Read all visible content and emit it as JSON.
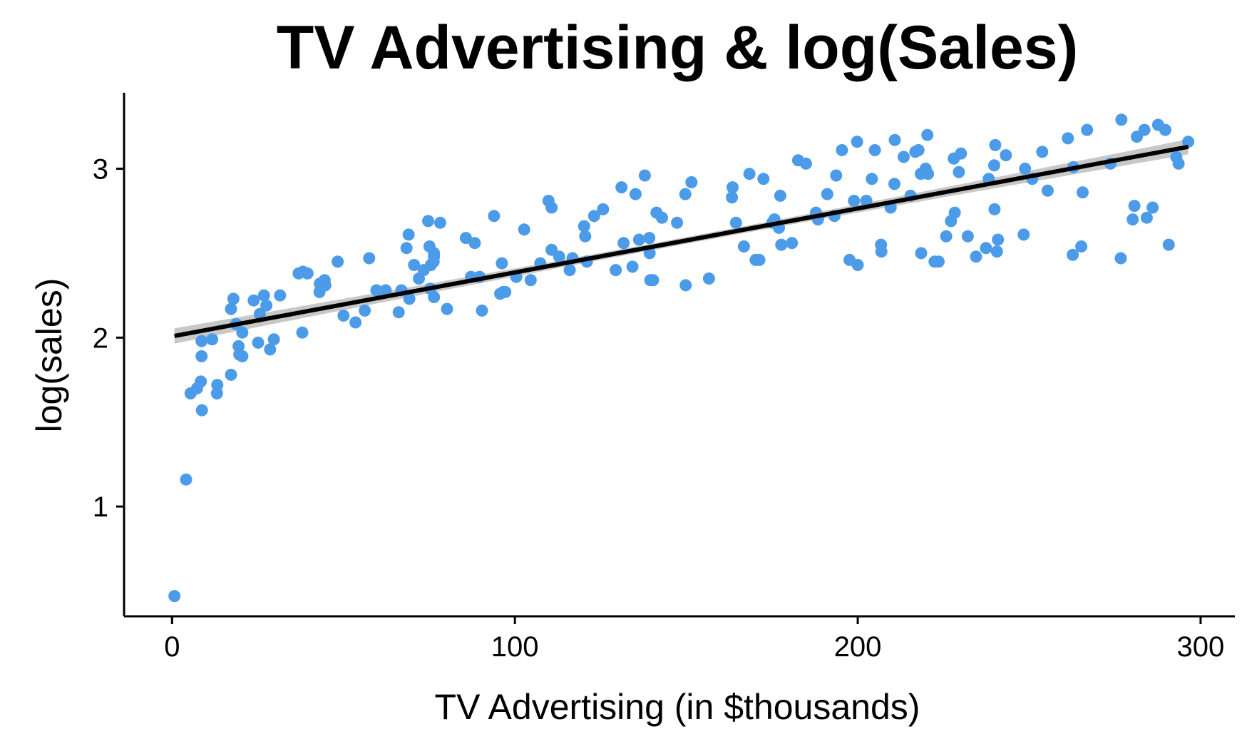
{
  "chart_data": {
    "type": "scatter",
    "title": "TV Advertising & log(Sales)",
    "xlabel": "TV Advertising (in $thousands)",
    "ylabel": "log(sales)",
    "xlim": [
      -14,
      310
    ],
    "ylim": [
      0.35,
      3.45
    ],
    "x_ticks": [
      0,
      100,
      200,
      300
    ],
    "y_ticks": [
      1,
      2,
      3
    ],
    "grid": false,
    "legend": "none",
    "point_color": "#4C9BE8",
    "line_color": "#000000",
    "band_color": "#BEBEBE",
    "fit": {
      "type": "linear",
      "x_range": [
        0.7,
        296.4
      ],
      "y_range": [
        2.01,
        3.13
      ],
      "confidence_band": true,
      "band_half_width_ends": 0.045,
      "band_half_width_center": 0.02
    },
    "points": [
      [
        0.7,
        0.47
      ],
      [
        4.1,
        1.16
      ],
      [
        5.4,
        1.67
      ],
      [
        7.3,
        1.7
      ],
      [
        8.4,
        1.74
      ],
      [
        8.6,
        1.89
      ],
      [
        8.7,
        1.57
      ],
      [
        8.6,
        1.98
      ],
      [
        11.7,
        1.99
      ],
      [
        13.1,
        1.67
      ],
      [
        13.2,
        1.72
      ],
      [
        17.2,
        1.78
      ],
      [
        17.2,
        2.17
      ],
      [
        17.9,
        2.23
      ],
      [
        18.7,
        2.08
      ],
      [
        19.4,
        1.95
      ],
      [
        19.6,
        1.9
      ],
      [
        20.5,
        1.89
      ],
      [
        20.5,
        2.03
      ],
      [
        23.8,
        2.22
      ],
      [
        25.1,
        1.97
      ],
      [
        25.6,
        2.14
      ],
      [
        26.8,
        2.25
      ],
      [
        27.5,
        2.19
      ],
      [
        28.6,
        1.93
      ],
      [
        29.7,
        1.99
      ],
      [
        31.5,
        2.25
      ],
      [
        36.9,
        2.38
      ],
      [
        38.0,
        2.03
      ],
      [
        38.2,
        2.39
      ],
      [
        39.5,
        2.38
      ],
      [
        43.0,
        2.27
      ],
      [
        43.1,
        2.32
      ],
      [
        44.5,
        2.34
      ],
      [
        44.7,
        2.31
      ],
      [
        48.3,
        2.45
      ],
      [
        50.0,
        2.13
      ],
      [
        53.5,
        2.09
      ],
      [
        56.2,
        2.16
      ],
      [
        57.5,
        2.47
      ],
      [
        59.6,
        2.28
      ],
      [
        62.3,
        2.28
      ],
      [
        66.1,
        2.15
      ],
      [
        66.9,
        2.28
      ],
      [
        68.4,
        2.53
      ],
      [
        69.0,
        2.61
      ],
      [
        69.2,
        2.23
      ],
      [
        70.6,
        2.43
      ],
      [
        72.0,
        2.35
      ],
      [
        73.4,
        2.4
      ],
      [
        74.7,
        2.69
      ],
      [
        75.1,
        2.54
      ],
      [
        75.3,
        2.29
      ],
      [
        75.5,
        2.43
      ],
      [
        76.3,
        2.45
      ],
      [
        76.4,
        2.24
      ],
      [
        76.4,
        2.5
      ],
      [
        76.4,
        2.48
      ],
      [
        78.2,
        2.68
      ],
      [
        80.2,
        2.17
      ],
      [
        85.7,
        2.59
      ],
      [
        87.2,
        2.36
      ],
      [
        88.3,
        2.56
      ],
      [
        89.7,
        2.36
      ],
      [
        90.4,
        2.16
      ],
      [
        93.9,
        2.72
      ],
      [
        95.7,
        2.26
      ],
      [
        96.2,
        2.44
      ],
      [
        96.6,
        2.27
      ],
      [
        97.2,
        2.27
      ],
      [
        100.4,
        2.36
      ],
      [
        102.7,
        2.64
      ],
      [
        104.6,
        2.34
      ],
      [
        107.4,
        2.44
      ],
      [
        109.8,
        2.81
      ],
      [
        110.7,
        2.52
      ],
      [
        110.7,
        2.77
      ],
      [
        112.9,
        2.48
      ],
      [
        116.0,
        2.4
      ],
      [
        116.8,
        2.47
      ],
      [
        120.2,
        2.66
      ],
      [
        120.5,
        2.6
      ],
      [
        121.0,
        2.45
      ],
      [
        123.1,
        2.72
      ],
      [
        125.7,
        2.76
      ],
      [
        129.4,
        2.4
      ],
      [
        131.1,
        2.89
      ],
      [
        131.7,
        2.56
      ],
      [
        134.3,
        2.42
      ],
      [
        135.2,
        2.85
      ],
      [
        136.2,
        2.58
      ],
      [
        137.9,
        2.96
      ],
      [
        139.2,
        2.59
      ],
      [
        139.3,
        2.5
      ],
      [
        139.5,
        2.34
      ],
      [
        140.3,
        2.34
      ],
      [
        141.3,
        2.74
      ],
      [
        142.9,
        2.71
      ],
      [
        147.3,
        2.68
      ],
      [
        149.7,
        2.85
      ],
      [
        149.8,
        2.31
      ],
      [
        151.5,
        2.92
      ],
      [
        156.6,
        2.35
      ],
      [
        163.3,
        2.83
      ],
      [
        163.5,
        2.89
      ],
      [
        164.5,
        2.68
      ],
      [
        166.8,
        2.54
      ],
      [
        168.4,
        2.97
      ],
      [
        170.2,
        2.46
      ],
      [
        171.3,
        2.46
      ],
      [
        172.5,
        2.94
      ],
      [
        175.1,
        2.68
      ],
      [
        175.7,
        2.7
      ],
      [
        177.0,
        2.65
      ],
      [
        177.4,
        2.84
      ],
      [
        177.7,
        2.55
      ],
      [
        180.8,
        2.56
      ],
      [
        182.6,
        3.05
      ],
      [
        184.9,
        3.03
      ],
      [
        187.8,
        2.74
      ],
      [
        188.4,
        2.71
      ],
      [
        188.4,
        2.7
      ],
      [
        191.1,
        2.85
      ],
      [
        193.2,
        2.72
      ],
      [
        193.7,
        2.96
      ],
      [
        195.4,
        3.11
      ],
      [
        197.6,
        2.46
      ],
      [
        198.9,
        2.81
      ],
      [
        199.8,
        3.16
      ],
      [
        200.0,
        2.43
      ],
      [
        202.5,
        2.81
      ],
      [
        204.1,
        2.94
      ],
      [
        205.0,
        3.11
      ],
      [
        206.8,
        2.55
      ],
      [
        206.9,
        2.51
      ],
      [
        209.6,
        2.77
      ],
      [
        210.7,
        2.91
      ],
      [
        210.8,
        3.17
      ],
      [
        213.4,
        3.07
      ],
      [
        215.4,
        2.84
      ],
      [
        216.8,
        3.1
      ],
      [
        217.7,
        3.11
      ],
      [
        218.4,
        2.97
      ],
      [
        218.5,
        2.5
      ],
      [
        219.8,
        3.0
      ],
      [
        220.3,
        3.2
      ],
      [
        220.5,
        2.97
      ],
      [
        222.4,
        2.45
      ],
      [
        223.6,
        2.45
      ],
      [
        225.8,
        2.6
      ],
      [
        227.2,
        2.69
      ],
      [
        228.0,
        3.06
      ],
      [
        228.3,
        2.74
      ],
      [
        229.5,
        2.98
      ],
      [
        230.1,
        3.09
      ],
      [
        232.1,
        2.6
      ],
      [
        234.5,
        2.48
      ],
      [
        237.4,
        2.53
      ],
      [
        238.2,
        2.94
      ],
      [
        239.8,
        3.02
      ],
      [
        239.9,
        2.76
      ],
      [
        240.1,
        3.14
      ],
      [
        240.6,
        2.51
      ],
      [
        240.9,
        2.58
      ],
      [
        243.2,
        3.08
      ],
      [
        248.4,
        2.61
      ],
      [
        248.8,
        3.0
      ],
      [
        250.9,
        2.94
      ],
      [
        253.8,
        3.1
      ],
      [
        255.4,
        2.87
      ],
      [
        261.3,
        3.18
      ],
      [
        262.7,
        2.49
      ],
      [
        262.9,
        3.01
      ],
      [
        265.2,
        2.54
      ],
      [
        265.6,
        2.86
      ],
      [
        266.9,
        3.23
      ],
      [
        273.7,
        3.03
      ],
      [
        276.7,
        2.47
      ],
      [
        276.9,
        3.29
      ],
      [
        280.2,
        2.7
      ],
      [
        280.7,
        2.78
      ],
      [
        281.4,
        3.19
      ],
      [
        283.6,
        3.23
      ],
      [
        284.3,
        2.71
      ],
      [
        286.0,
        2.77
      ],
      [
        287.6,
        3.26
      ],
      [
        289.7,
        3.23
      ],
      [
        290.7,
        2.55
      ],
      [
        292.9,
        3.07
      ],
      [
        293.6,
        3.03
      ],
      [
        296.4,
        3.16
      ]
    ]
  }
}
